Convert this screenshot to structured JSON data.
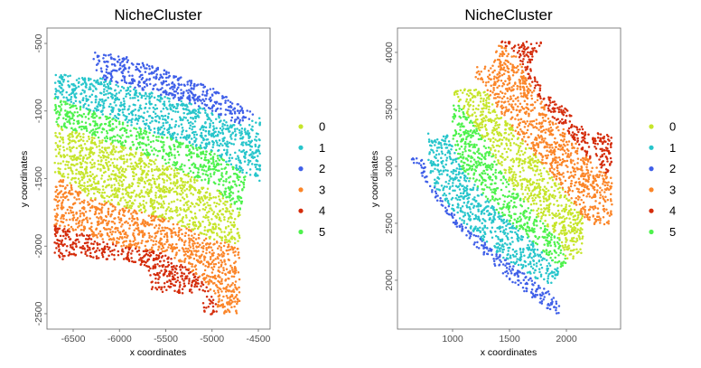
{
  "legend": {
    "labels": [
      "0",
      "1",
      "2",
      "3",
      "4",
      "5"
    ],
    "colors": [
      "#c6e52b",
      "#27c5cb",
      "#3f5fe8",
      "#fb8528",
      "#d42c0b",
      "#4ef24d"
    ]
  },
  "chart_data": [
    {
      "type": "scatter",
      "title": "NicheCluster",
      "xlabel": "x coordinates",
      "ylabel": "y coordinates",
      "xlim": [
        -6783,
        -4373
      ],
      "ylim": [
        -2614,
        -386
      ],
      "xticks": [
        -6500,
        -6000,
        -5500,
        -5000,
        -4500
      ],
      "yticks": [
        -500,
        -1000,
        -1500,
        -2000,
        -2500
      ],
      "xtick_labels": [
        "-6500",
        "-6000",
        "-5500",
        "-5000",
        "-4500"
      ],
      "ytick_labels": [
        "-500",
        "-1000",
        "-1500",
        "-2000",
        "-2500"
      ],
      "grid": false,
      "legend_position": "right",
      "cluster_regions": [
        {
          "cluster": "2",
          "polygon": [
            [
              -6300,
              -560
            ],
            [
              -5900,
              -600
            ],
            [
              -5000,
              -830
            ],
            [
              -4500,
              -1030
            ],
            [
              -4700,
              -1100
            ],
            [
              -5200,
              -950
            ],
            [
              -6250,
              -750
            ]
          ]
        },
        {
          "cluster": "1",
          "polygon": [
            [
              -6700,
              -720
            ],
            [
              -6250,
              -750
            ],
            [
              -5200,
              -950
            ],
            [
              -4700,
              -1100
            ],
            [
              -4480,
              -1050
            ],
            [
              -4480,
              -1520
            ],
            [
              -4700,
              -1450
            ],
            [
              -5000,
              -1300
            ],
            [
              -5700,
              -1150
            ],
            [
              -6100,
              -1050
            ],
            [
              -6700,
              -900
            ]
          ]
        },
        {
          "cluster": "5",
          "polygon": [
            [
              -6700,
              -900
            ],
            [
              -6100,
              -1050
            ],
            [
              -5700,
              -1150
            ],
            [
              -5000,
              -1300
            ],
            [
              -4700,
              -1450
            ],
            [
              -4620,
              -1500
            ],
            [
              -4700,
              -1750
            ],
            [
              -5000,
              -1550
            ],
            [
              -5800,
              -1300
            ],
            [
              -6700,
              -1100
            ]
          ]
        },
        {
          "cluster": "0",
          "polygon": [
            [
              -6700,
              -1100
            ],
            [
              -5800,
              -1300
            ],
            [
              -5000,
              -1550
            ],
            [
              -4700,
              -1750
            ],
            [
              -4700,
              -2000
            ],
            [
              -5000,
              -1950
            ],
            [
              -5500,
              -1800
            ],
            [
              -6000,
              -1700
            ],
            [
              -6300,
              -1650
            ],
            [
              -6700,
              -1450
            ]
          ]
        },
        {
          "cluster": "3",
          "polygon": [
            [
              -6700,
              -1450
            ],
            [
              -6300,
              -1650
            ],
            [
              -6000,
              -1700
            ],
            [
              -5500,
              -1800
            ],
            [
              -5000,
              -1950
            ],
            [
              -4700,
              -2000
            ],
            [
              -4700,
              -2500
            ],
            [
              -4900,
              -2500
            ],
            [
              -5100,
              -2250
            ],
            [
              -5500,
              -2050
            ],
            [
              -6000,
              -2000
            ],
            [
              -6400,
              -1900
            ],
            [
              -6700,
              -1850
            ]
          ]
        },
        {
          "cluster": "4",
          "polygon": [
            [
              -6700,
              -1850
            ],
            [
              -6400,
              -1900
            ],
            [
              -6000,
              -2000
            ],
            [
              -5500,
              -2050
            ],
            [
              -5100,
              -2250
            ],
            [
              -4900,
              -2500
            ],
            [
              -5100,
              -2520
            ],
            [
              -5100,
              -2350
            ],
            [
              -5450,
              -2350
            ],
            [
              -5650,
              -2320
            ],
            [
              -5700,
              -2150
            ],
            [
              -6000,
              -2100
            ],
            [
              -6700,
              -2100
            ]
          ]
        }
      ]
    },
    {
      "type": "scatter",
      "title": "NicheCluster",
      "xlabel": "x coordinates",
      "ylabel": "y coordinates",
      "xlim": [
        516,
        2476
      ],
      "ylim": [
        1571,
        4214
      ],
      "xticks": [
        1000,
        1500,
        2000
      ],
      "yticks": [
        2000,
        2500,
        3000,
        3500,
        4000
      ],
      "xtick_labels": [
        "1000",
        "1500",
        "2000"
      ],
      "ytick_labels": [
        "2000",
        "2500",
        "3000",
        "3500",
        "4000"
      ],
      "grid": false,
      "legend_position": "right",
      "cluster_regions": [
        {
          "cluster": "2",
          "polygon": [
            [
              620,
              3090
            ],
            [
              800,
              2800
            ],
            [
              1000,
              2500
            ],
            [
              1500,
              2000
            ],
            [
              1900,
              1700
            ],
            [
              1980,
              1720
            ],
            [
              1850,
              1900
            ],
            [
              1500,
              2150
            ],
            [
              1100,
              2500
            ],
            [
              850,
              2800
            ],
            [
              720,
              3090
            ]
          ]
        },
        {
          "cluster": "1",
          "polygon": [
            [
              780,
              3290
            ],
            [
              950,
              3280
            ],
            [
              1100,
              2950
            ],
            [
              1400,
              2600
            ],
            [
              1700,
              2350
            ],
            [
              1950,
              2100
            ],
            [
              1900,
              2000
            ],
            [
              1850,
              1950
            ],
            [
              1500,
              2150
            ],
            [
              1100,
              2500
            ],
            [
              850,
              2800
            ],
            [
              780,
              3000
            ]
          ]
        },
        {
          "cluster": "5",
          "polygon": [
            [
              1000,
              3600
            ],
            [
              1100,
              3500
            ],
            [
              1300,
              3200
            ],
            [
              1500,
              2850
            ],
            [
              1800,
              2500
            ],
            [
              1950,
              2350
            ],
            [
              2000,
              2150
            ],
            [
              1950,
              2100
            ],
            [
              1700,
              2350
            ],
            [
              1400,
              2600
            ],
            [
              1100,
              2950
            ],
            [
              1000,
              3200
            ]
          ]
        },
        {
          "cluster": "0",
          "polygon": [
            [
              1000,
              3680
            ],
            [
              1300,
              3680
            ],
            [
              1400,
              3500
            ],
            [
              1600,
              3250
            ],
            [
              1850,
              2950
            ],
            [
              2050,
              2700
            ],
            [
              2150,
              2550
            ],
            [
              2150,
              2250
            ],
            [
              2000,
              2150
            ],
            [
              1950,
              2350
            ],
            [
              1800,
              2500
            ],
            [
              1500,
              2850
            ],
            [
              1300,
              3200
            ],
            [
              1100,
              3500
            ],
            [
              1000,
              3650
            ]
          ]
        },
        {
          "cluster": "3",
          "polygon": [
            [
              1200,
              3880
            ],
            [
              1350,
              3880
            ],
            [
              1400,
              4070
            ],
            [
              1550,
              4000
            ],
            [
              1700,
              3700
            ],
            [
              1900,
              3400
            ],
            [
              2100,
              3200
            ],
            [
              2250,
              3000
            ],
            [
              2400,
              2900
            ],
            [
              2400,
              2500
            ],
            [
              2250,
              2480
            ],
            [
              2150,
              2550
            ],
            [
              2050,
              2700
            ],
            [
              1850,
              2950
            ],
            [
              1600,
              3250
            ],
            [
              1400,
              3500
            ],
            [
              1300,
              3680
            ],
            [
              1200,
              3750
            ]
          ]
        },
        {
          "cluster": "4",
          "polygon": [
            [
              1400,
              4100
            ],
            [
              1780,
              4090
            ],
            [
              1700,
              3850
            ],
            [
              1800,
              3650
            ],
            [
              2000,
              3500
            ],
            [
              2200,
              3300
            ],
            [
              2400,
              3280
            ],
            [
              2400,
              2900
            ],
            [
              2250,
              3000
            ],
            [
              2100,
              3200
            ],
            [
              1900,
              3400
            ],
            [
              1700,
              3700
            ],
            [
              1550,
              4000
            ]
          ]
        }
      ]
    }
  ]
}
